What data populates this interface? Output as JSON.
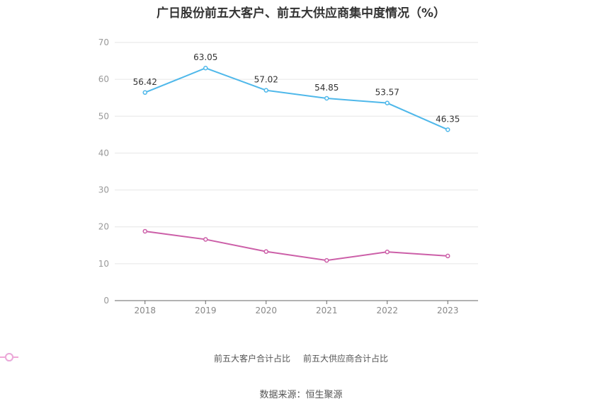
{
  "chart_data": {
    "type": "line",
    "title": "广日股份前五大客户、前五大供应商集中度情况（%）",
    "categories": [
      "2018",
      "2019",
      "2020",
      "2021",
      "2022",
      "2023"
    ],
    "ylim": [
      0,
      70
    ],
    "yticks": [
      0,
      10,
      20,
      30,
      40,
      50,
      60,
      70
    ],
    "grid": true,
    "legend_position": "bottom",
    "series": [
      {
        "name": "前五大客户合计占比",
        "color": "#4fb8ea",
        "values": [
          56.42,
          63.05,
          57.02,
          54.85,
          53.57,
          46.35
        ],
        "labels": [
          "56.42",
          "63.05",
          "57.02",
          "54.85",
          "53.57",
          "46.35"
        ]
      },
      {
        "name": "前五大供应商合计占比",
        "color": "#cc5fa8",
        "values": [
          18.8,
          16.6,
          13.3,
          10.9,
          13.2,
          12.1
        ]
      }
    ]
  },
  "source": "数据来源：恒生聚源"
}
